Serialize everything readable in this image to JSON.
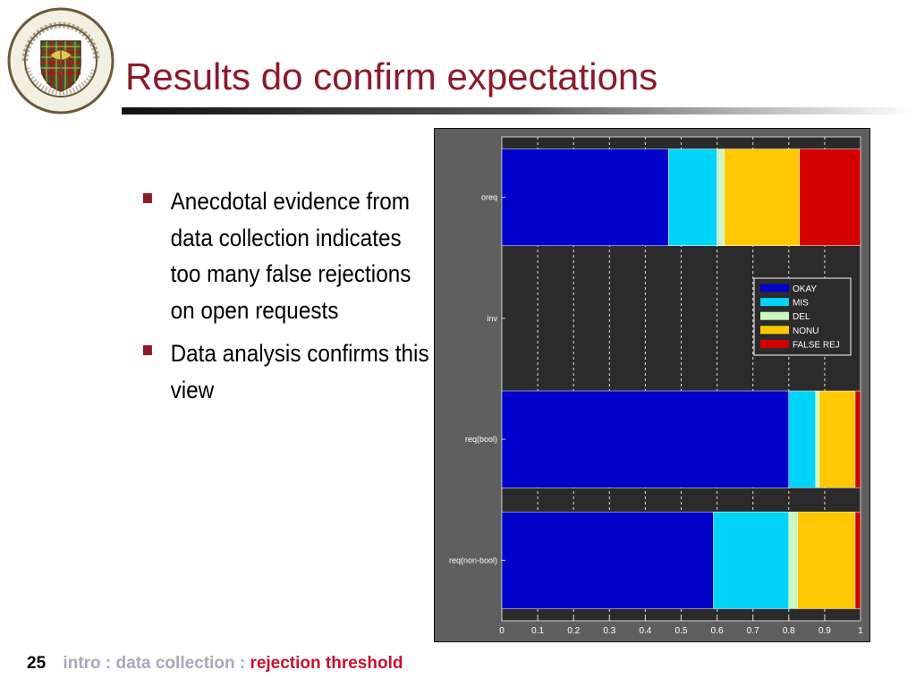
{
  "slide": {
    "title": "Results do confirm expectations",
    "logo_text": "Carnegie-Mellon University · PITTSBURGH PENNSYLVANIA 1900",
    "bullets": [
      "Anecdotal evidence from data collection indicates too many false rejections on open requests",
      "Data analysis confirms this view"
    ],
    "page_number": "25",
    "breadcrumb": "intro : data collection : ",
    "breadcrumb_active": "rejection threshold",
    "colors": {
      "title": "#8b1a2b",
      "bullet": "#8b1a2b",
      "footer_active": "#c8102e",
      "footer_muted": "#a8a8b8"
    }
  },
  "chart_data": {
    "type": "bar",
    "orientation": "horizontal",
    "stacked": true,
    "categories": [
      "oreq",
      "inv",
      "req(bool)",
      "req(non-bool)"
    ],
    "series": [
      {
        "name": "OKAY",
        "color": "#0000cc",
        "values": [
          0.465,
          0,
          0.8,
          0.59
        ]
      },
      {
        "name": "MIS",
        "color": "#00d4f8",
        "values": [
          0.135,
          0,
          0.075,
          0.21
        ]
      },
      {
        "name": "DEL",
        "color": "#ccf7c0",
        "values": [
          0.02,
          0,
          0.01,
          0.025
        ]
      },
      {
        "name": "NONU",
        "color": "#ffc800",
        "values": [
          0.21,
          0,
          0.1,
          0.16
        ]
      },
      {
        "name": "FALSE REJ",
        "color": "#d40000",
        "values": [
          0.17,
          0,
          0.015,
          0.015
        ]
      }
    ],
    "xlim": [
      0,
      1
    ],
    "xticks": [
      "0",
      "0.1",
      "0.2",
      "0.3",
      "0.4",
      "0.5",
      "0.6",
      "0.7",
      "0.8",
      "0.9",
      "1"
    ],
    "grid": true,
    "legend": "right",
    "plot_background": "#2b2b2b",
    "figure_background": "#5f5f5f",
    "title": "",
    "xlabel": "",
    "ylabel": ""
  }
}
